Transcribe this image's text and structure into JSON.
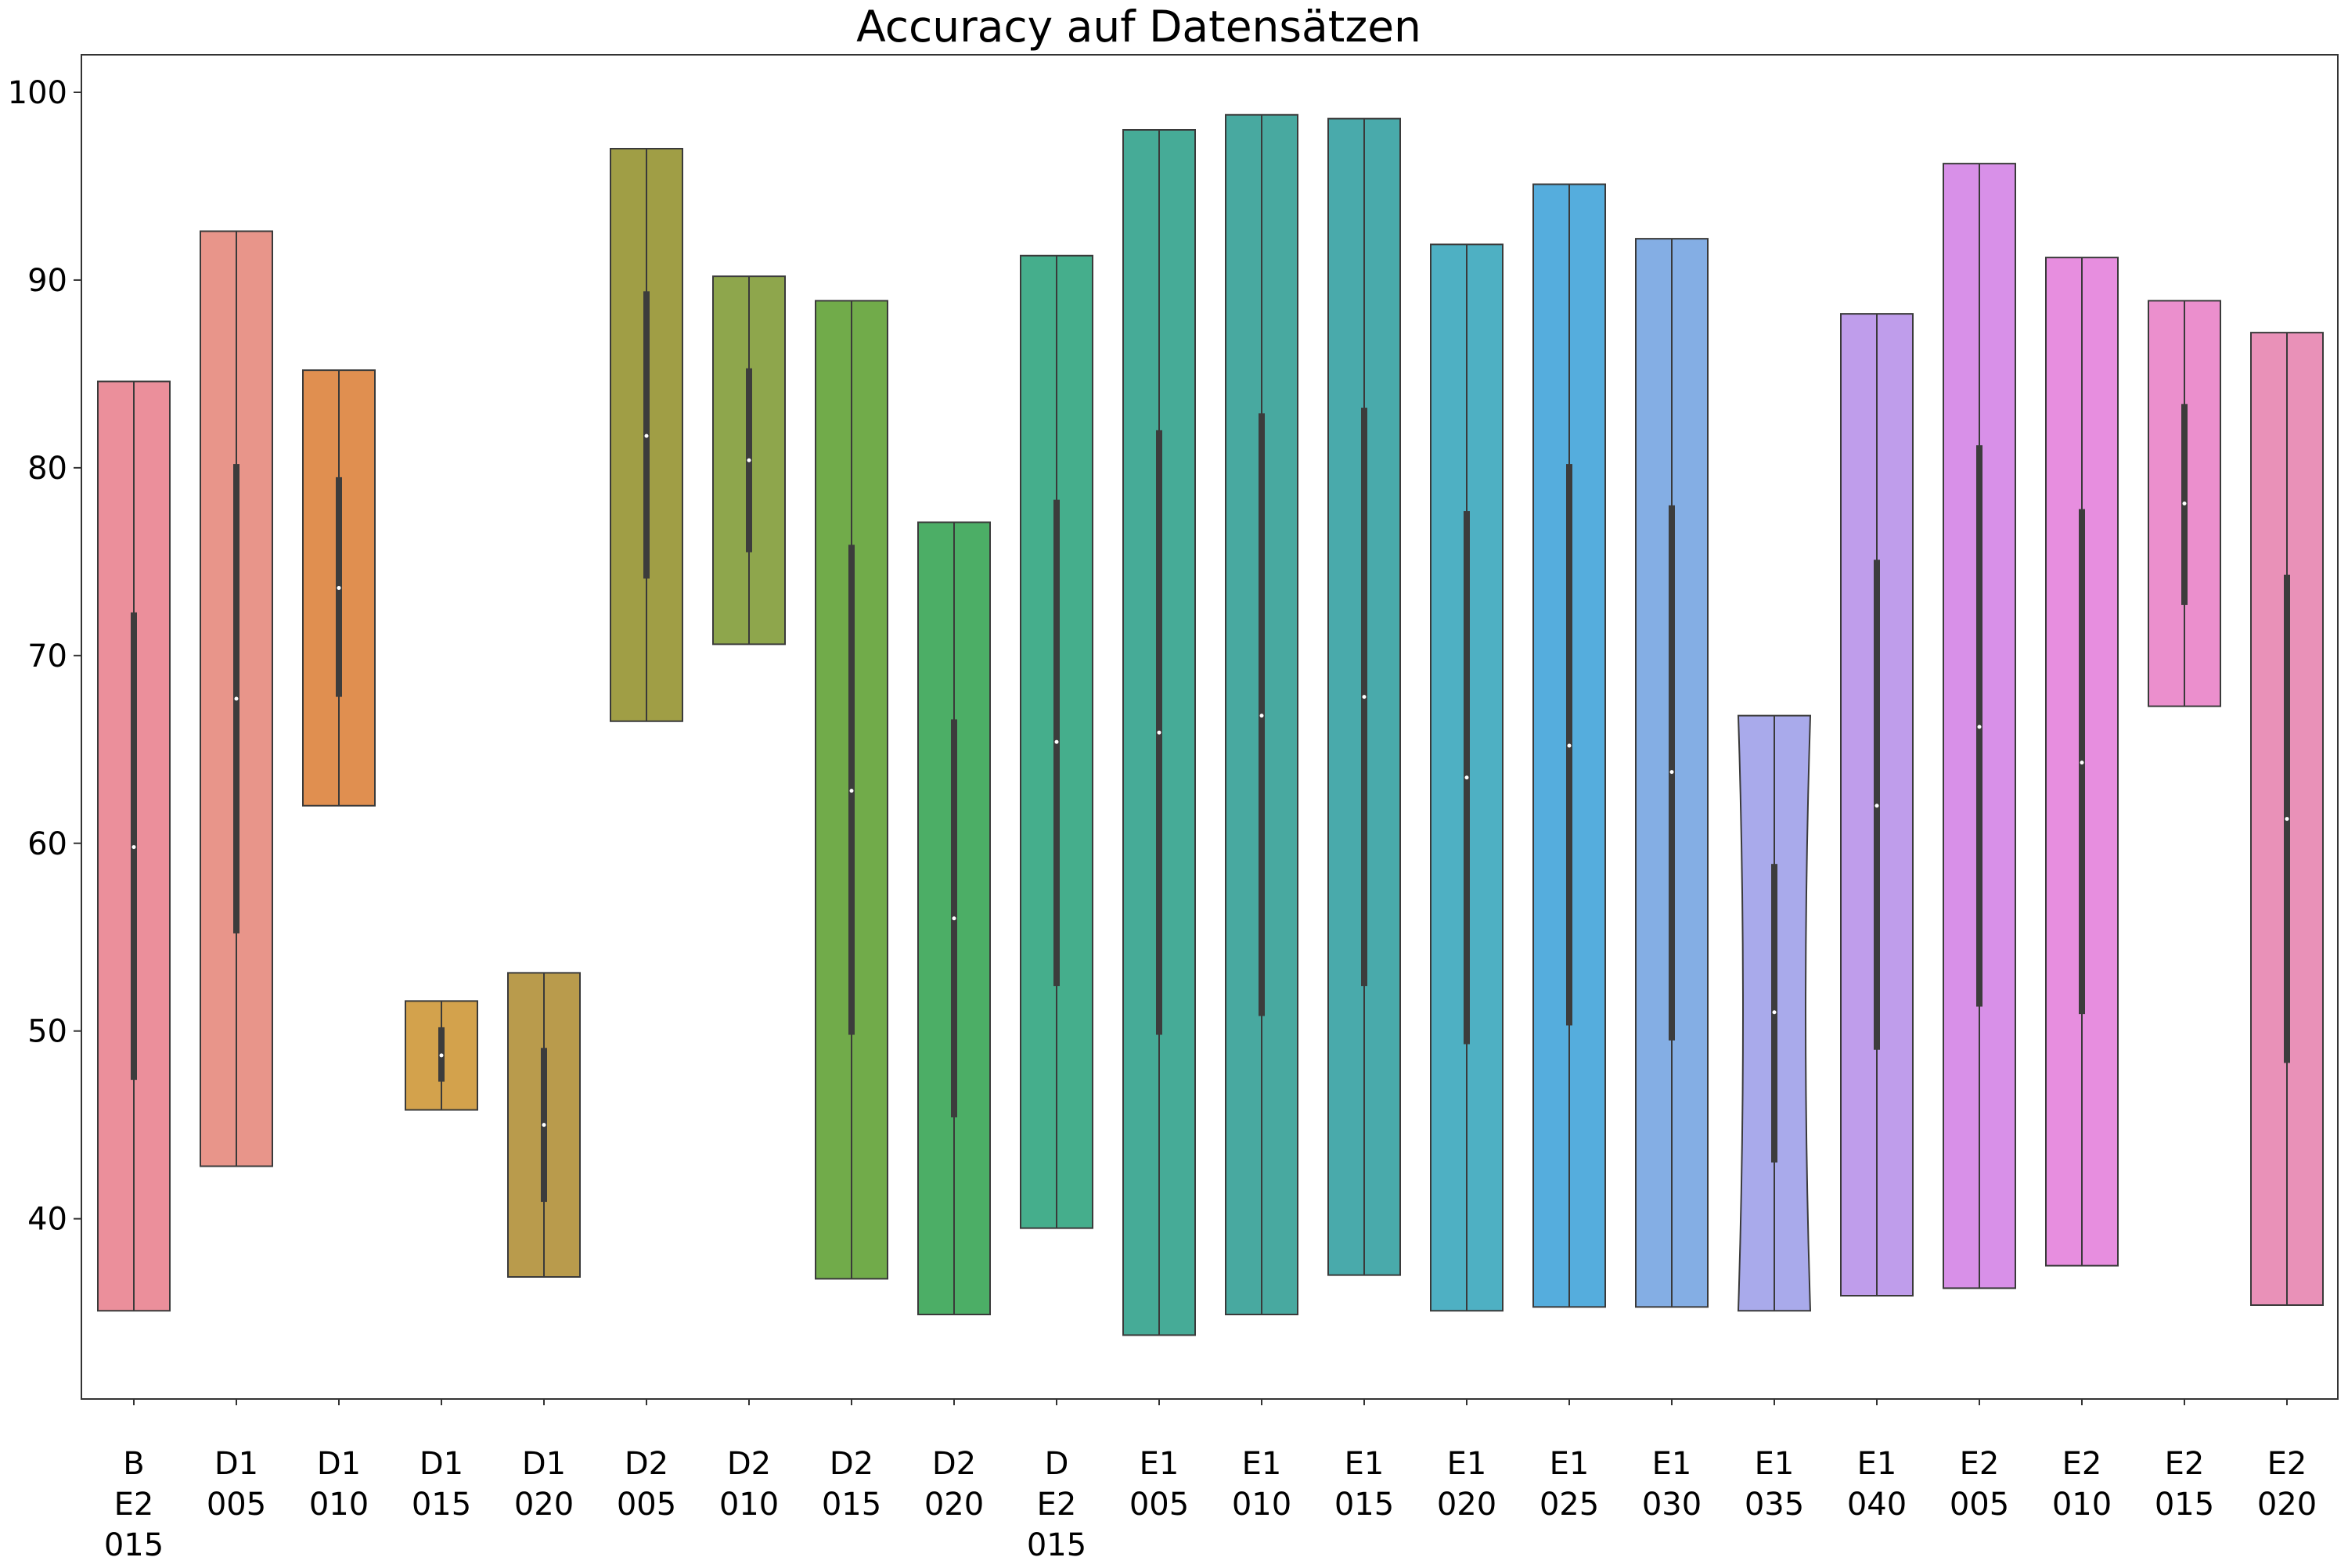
{
  "chart_data": {
    "type": "violin",
    "title": "Accuracy auf Datensätzen",
    "xlabel": "",
    "ylabel": "",
    "ylim": [
      30.4,
      102
    ],
    "y_ticks": [
      40,
      50,
      60,
      70,
      80,
      90,
      100
    ],
    "grid": false,
    "categories": [
      {
        "label": [
          "B",
          "E2",
          "015"
        ],
        "min": 35.1,
        "q1": 47.4,
        "median": 59.8,
        "q3": 72.3,
        "max": 84.6,
        "color": "#eb8f9b",
        "shape": "convex"
      },
      {
        "label": [
          "D1",
          "005"
        ],
        "min": 42.8,
        "q1": 55.2,
        "median": 67.7,
        "q3": 80.2,
        "max": 92.6,
        "color": "#e8958a",
        "shape": "convex"
      },
      {
        "label": [
          "D1",
          "010"
        ],
        "min": 62.0,
        "q1": 67.8,
        "median": 73.6,
        "q3": 79.5,
        "max": 85.2,
        "color": "#e08f50",
        "shape": "convex"
      },
      {
        "label": [
          "D1",
          "015"
        ],
        "min": 45.8,
        "q1": 47.3,
        "median": 48.7,
        "q3": 50.2,
        "max": 51.6,
        "color": "#d3a24c",
        "shape": "convex"
      },
      {
        "label": [
          "D1",
          "020"
        ],
        "min": 36.9,
        "q1": 40.9,
        "median": 45.0,
        "q3": 49.1,
        "max": 53.1,
        "color": "#b99b4c",
        "shape": "convex"
      },
      {
        "label": [
          "D2",
          "005"
        ],
        "min": 66.5,
        "q1": 74.1,
        "median": 81.7,
        "q3": 89.4,
        "max": 97.0,
        "color": "#a09e45",
        "shape": "convex"
      },
      {
        "label": [
          "D2",
          "010"
        ],
        "min": 70.6,
        "q1": 75.5,
        "median": 80.4,
        "q3": 85.3,
        "max": 90.2,
        "color": "#8ea64c",
        "shape": "convex"
      },
      {
        "label": [
          "D2",
          "015"
        ],
        "min": 36.8,
        "q1": 49.8,
        "median": 62.8,
        "q3": 75.9,
        "max": 88.9,
        "color": "#71ab4a",
        "shape": "convex"
      },
      {
        "label": [
          "D2",
          "020"
        ],
        "min": 34.9,
        "q1": 45.4,
        "median": 56.0,
        "q3": 66.6,
        "max": 77.1,
        "color": "#4cae66",
        "shape": "convex"
      },
      {
        "label": [
          "D",
          "E2",
          "015"
        ],
        "min": 39.5,
        "q1": 52.4,
        "median": 65.4,
        "q3": 78.3,
        "max": 91.3,
        "color": "#45ae8c",
        "shape": "convex"
      },
      {
        "label": [
          "E1",
          "005"
        ],
        "min": 33.8,
        "q1": 49.8,
        "median": 65.9,
        "q3": 82.0,
        "max": 98.0,
        "color": "#46ab97",
        "shape": "convex"
      },
      {
        "label": [
          "E1",
          "010"
        ],
        "min": 34.9,
        "q1": 50.8,
        "median": 66.8,
        "q3": 82.9,
        "max": 98.8,
        "color": "#48a9a0",
        "shape": "convex"
      },
      {
        "label": [
          "E1",
          "015"
        ],
        "min": 37.0,
        "q1": 52.4,
        "median": 67.8,
        "q3": 83.2,
        "max": 98.6,
        "color": "#49aaab",
        "shape": "convex"
      },
      {
        "label": [
          "E1",
          "020"
        ],
        "min": 35.1,
        "q1": 49.3,
        "median": 63.5,
        "q3": 77.7,
        "max": 91.9,
        "color": "#4eb0c3",
        "shape": "convex"
      },
      {
        "label": [
          "E1",
          "025"
        ],
        "min": 35.3,
        "q1": 50.3,
        "median": 65.2,
        "q3": 80.2,
        "max": 95.1,
        "color": "#55addd",
        "shape": "convex"
      },
      {
        "label": [
          "E1",
          "030"
        ],
        "min": 35.3,
        "q1": 49.5,
        "median": 63.8,
        "q3": 78.0,
        "max": 92.2,
        "color": "#84aee4",
        "shape": "convex"
      },
      {
        "label": [
          "E1",
          "035"
        ],
        "min": 35.1,
        "q1": 43.0,
        "median": 51.0,
        "q3": 58.9,
        "max": 66.8,
        "color": "#a9aaeb",
        "shape": "concave"
      },
      {
        "label": [
          "E1",
          "040"
        ],
        "min": 35.9,
        "q1": 49.0,
        "median": 62.0,
        "q3": 75.1,
        "max": 88.2,
        "color": "#bf9deb",
        "shape": "convex"
      },
      {
        "label": [
          "E2",
          "005"
        ],
        "min": 36.3,
        "q1": 51.3,
        "median": 66.2,
        "q3": 81.2,
        "max": 96.2,
        "color": "#d890e8",
        "shape": "convex"
      },
      {
        "label": [
          "E2",
          "010"
        ],
        "min": 37.5,
        "q1": 50.9,
        "median": 64.3,
        "q3": 77.8,
        "max": 91.2,
        "color": "#e78edf",
        "shape": "convex"
      },
      {
        "label": [
          "E2",
          "015"
        ],
        "min": 67.3,
        "q1": 72.7,
        "median": 78.1,
        "q3": 83.4,
        "max": 88.9,
        "color": "#eb8fcd",
        "shape": "convex"
      },
      {
        "label": [
          "E2",
          "020"
        ],
        "min": 35.4,
        "q1": 48.3,
        "median": 61.3,
        "q3": 74.3,
        "max": 87.2,
        "color": "#e991b8",
        "shape": "convex"
      }
    ]
  }
}
